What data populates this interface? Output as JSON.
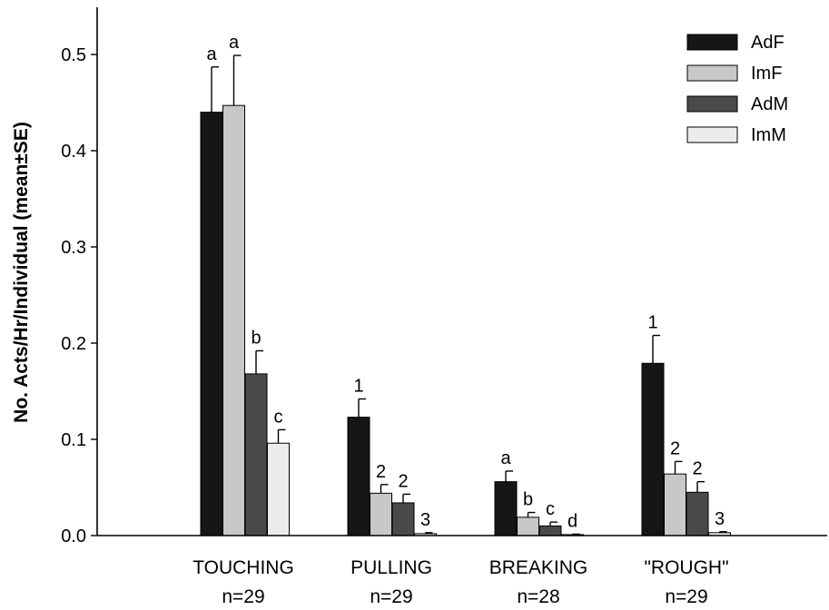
{
  "chart_data": {
    "type": "bar",
    "title": "",
    "xlabel": "",
    "ylabel": "No. Acts/Hr/Individual (mean±SE)",
    "ylim": [
      0,
      0.55
    ],
    "yticks": [
      "0.0",
      "0.1",
      "0.2",
      "0.3",
      "0.4",
      "0.5"
    ],
    "categories": [
      "TOUCHING",
      "PULLING",
      "BREAKING",
      "\"ROUGH\""
    ],
    "category_n": [
      "n=29",
      "n=29",
      "n=28",
      "n=29"
    ],
    "legend_position": "top-right",
    "series": [
      {
        "name": "AdF",
        "color": "#161616",
        "values": [
          0.44,
          0.123,
          0.056,
          0.179
        ],
        "errors": [
          0.047,
          0.019,
          0.011,
          0.029
        ],
        "letters": [
          "a",
          "1",
          "a",
          "1"
        ]
      },
      {
        "name": "ImF",
        "color": "#c8c8c8",
        "values": [
          0.447,
          0.044,
          0.019,
          0.064
        ],
        "errors": [
          0.052,
          0.009,
          0.005,
          0.013
        ],
        "letters": [
          "a",
          "2",
          "b",
          "2"
        ]
      },
      {
        "name": "AdM",
        "color": "#4a4a4a",
        "values": [
          0.168,
          0.034,
          0.01,
          0.045
        ],
        "errors": [
          0.024,
          0.009,
          0.004,
          0.011
        ],
        "letters": [
          "b",
          "2",
          "c",
          "2"
        ]
      },
      {
        "name": "ImM",
        "color": "#ebebeb",
        "values": [
          0.096,
          0.002,
          0.001,
          0.003
        ],
        "errors": [
          0.014,
          0.001,
          0.0005,
          0.001
        ],
        "letters": [
          "c",
          "3",
          "d",
          "3"
        ]
      }
    ]
  }
}
